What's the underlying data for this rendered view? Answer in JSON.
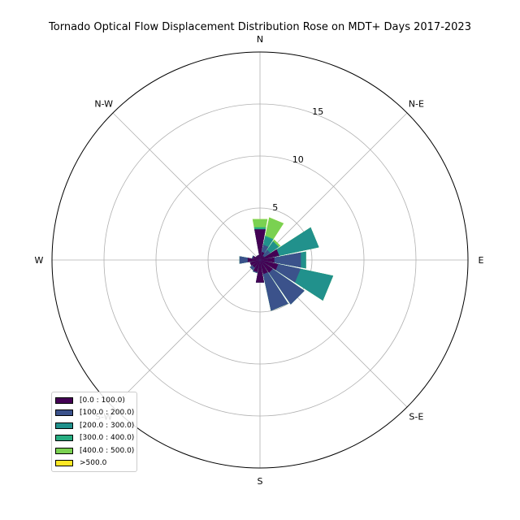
{
  "chart_data": {
    "type": "windrose",
    "title": "Tornado Optical Flow Displacement Distribution Rose on MDT+ Days 2017-2023",
    "directions": [
      "N",
      "NNE",
      "NE",
      "ENE",
      "E",
      "ESE",
      "SE",
      "SSE",
      "S",
      "SSW",
      "SW",
      "WSW",
      "W",
      "WNW",
      "NW",
      "NNW"
    ],
    "direction_labels": [
      "N",
      "N-E",
      "E",
      "S-E",
      "S",
      "S-W",
      "W",
      "N-W"
    ],
    "rmax": 20,
    "radial_ticks": [
      5,
      10,
      15
    ],
    "radial_tick_labels": [
      "5",
      "10",
      "15"
    ],
    "grid": true,
    "bins": [
      {
        "label": "[0.0 : 100.0)",
        "color": "#440154",
        "cumulative": [
          3.0,
          0.8,
          0.5,
          1.9,
          1.4,
          1.8,
          1.5,
          1.4,
          2.2,
          1.2,
          0.9,
          1.0,
          1.2,
          0.7,
          0.5,
          0.5
        ]
      },
      {
        "label": "[100.0 : 200.0)",
        "color": "#3b528b",
        "cumulative": [
          3.0,
          1.5,
          1.2,
          1.9,
          4.0,
          4.0,
          5.2,
          5.0,
          2.2,
          1.3,
          1.2,
          1.0,
          2.0,
          0.8,
          0.5,
          0.5
        ]
      },
      {
        "label": "[200.0 : 300.0)",
        "color": "#21918c",
        "cumulative": [
          3.0,
          2.3,
          2.2,
          5.8,
          4.5,
          7.2,
          5.2,
          5.0,
          2.2,
          1.3,
          1.2,
          1.0,
          2.0,
          0.8,
          0.5,
          0.5
        ]
      },
      {
        "label": "[300.0 : 400.0)",
        "color": "#27ad81",
        "cumulative": [
          3.2,
          2.4,
          2.2,
          5.8,
          4.5,
          7.2,
          5.2,
          5.0,
          2.2,
          1.3,
          1.2,
          1.0,
          2.0,
          0.8,
          0.5,
          0.5
        ]
      },
      {
        "label": "[400.0 : 500.0)",
        "color": "#7ad151",
        "cumulative": [
          4.0,
          4.2,
          2.4,
          5.8,
          4.5,
          7.2,
          5.2,
          5.0,
          2.2,
          1.3,
          1.2,
          1.0,
          2.0,
          0.8,
          0.5,
          0.5
        ]
      },
      {
        "label": ">500.0",
        "color": "#fde725",
        "cumulative": [
          4.0,
          4.2,
          2.4,
          5.8,
          4.5,
          7.2,
          5.2,
          5.0,
          2.2,
          1.3,
          1.2,
          1.0,
          2.0,
          0.8,
          0.5,
          0.5
        ]
      }
    ],
    "legend_position": "lower-left"
  }
}
